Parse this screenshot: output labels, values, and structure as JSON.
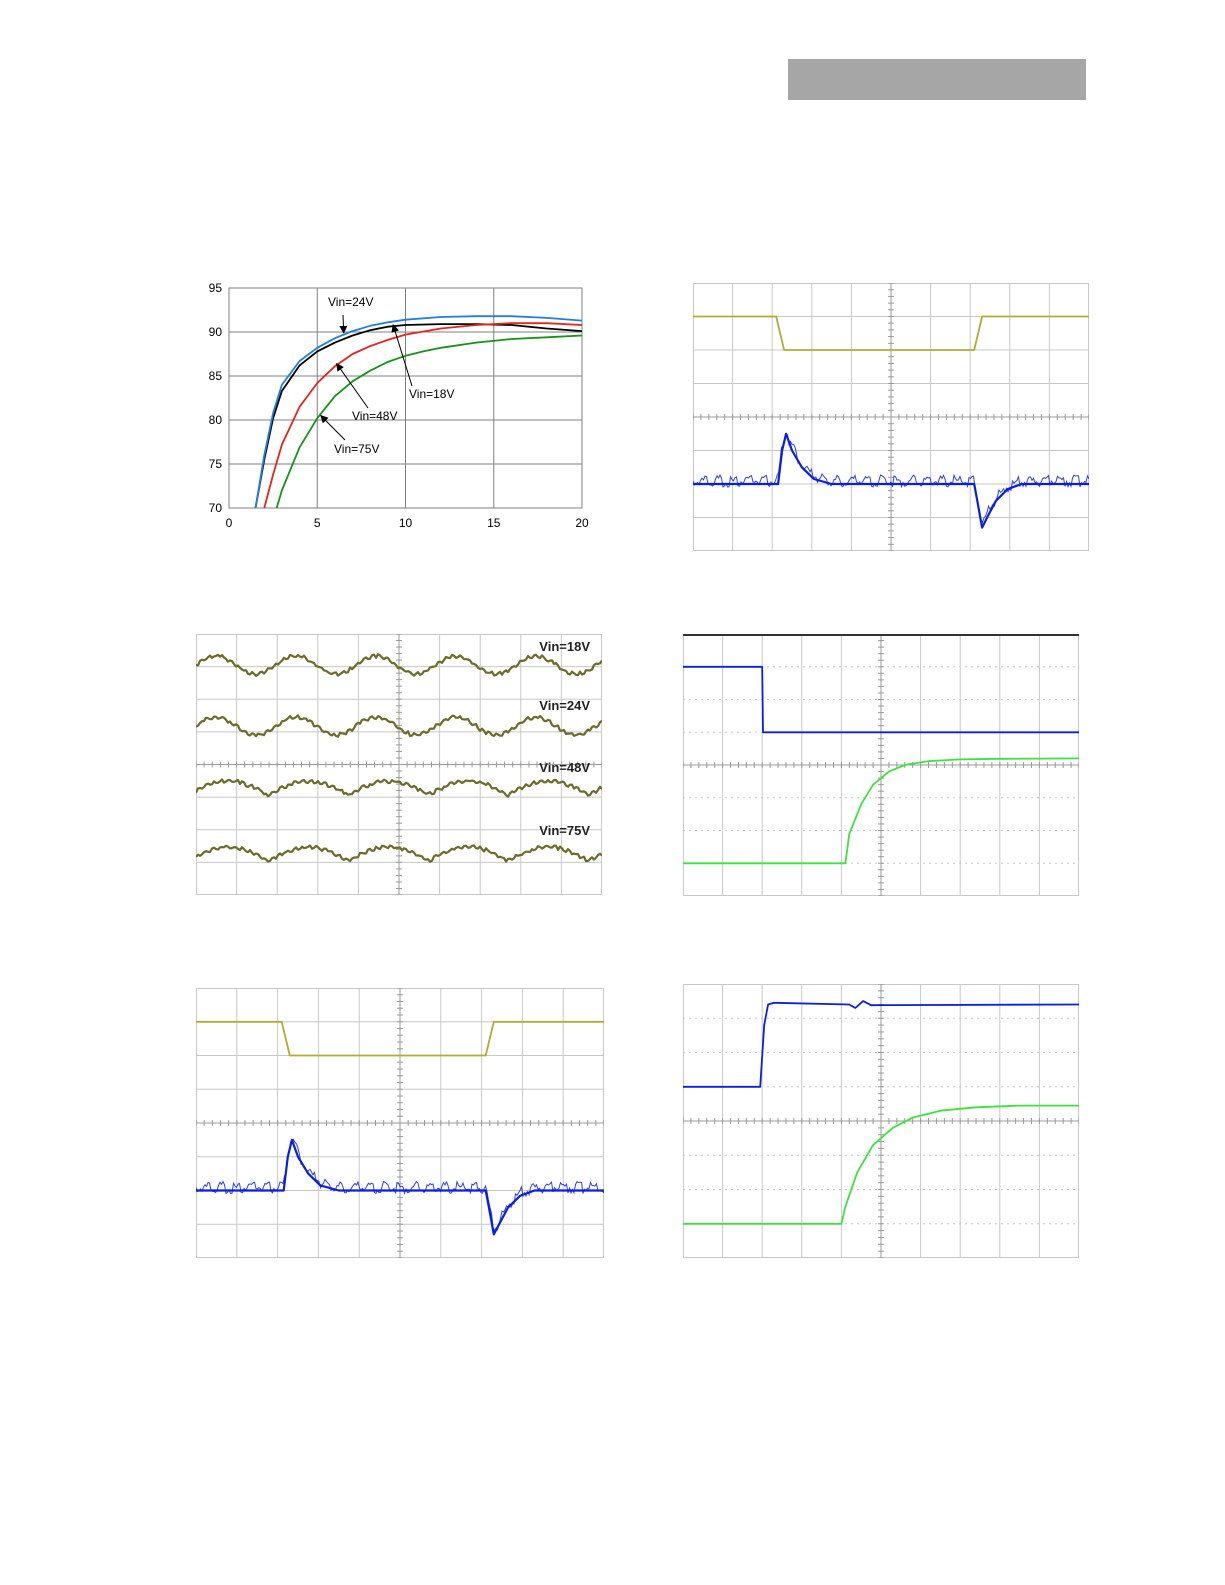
{
  "header": {
    "bar_color": "#a6a6a6"
  },
  "colors": {
    "vin18": "#000000",
    "vin24": "#1f7fe6",
    "vin48": "#e8231b",
    "vin75": "#179317",
    "scope_yellow": "#b0ac34",
    "scope_blue": "#0a1fe0",
    "scope_green": "#3de33d",
    "ripple_trace": "#6b6b2a",
    "grid": "#c8c8c8"
  },
  "chart_data": [
    {
      "id": "efficiency",
      "type": "line",
      "title": "",
      "xlabel": "",
      "ylabel": "",
      "xlim": [
        0,
        20
      ],
      "ylim": [
        70,
        95
      ],
      "x_ticks": [
        "0",
        "5",
        "10",
        "15",
        "20"
      ],
      "y_ticks": [
        "70",
        "75",
        "80",
        "85",
        "90",
        "95"
      ],
      "grid": true,
      "series": [
        {
          "name": "Vin=18V",
          "color": "#000000",
          "x": [
            1.5,
            2,
            2.5,
            3,
            4,
            5,
            6,
            7,
            8,
            9,
            10,
            12,
            14,
            16,
            18,
            20
          ],
          "y": [
            70,
            75.5,
            80.2,
            83.3,
            86.2,
            87.8,
            88.8,
            89.6,
            90.2,
            90.6,
            90.8,
            90.9,
            90.9,
            90.8,
            90.4,
            90.1
          ]
        },
        {
          "name": "Vin=24V",
          "color": "#1f7fe6",
          "x": [
            1.5,
            2,
            2.5,
            3,
            4,
            5,
            6,
            7,
            8,
            9,
            10,
            12,
            14,
            16,
            18,
            20
          ],
          "y": [
            70,
            76,
            80.8,
            84,
            86.7,
            88.2,
            89.3,
            90.1,
            90.7,
            91.1,
            91.4,
            91.7,
            91.8,
            91.8,
            91.6,
            91.3
          ]
        },
        {
          "name": "Vin=48V",
          "color": "#e8231b",
          "x": [
            2,
            2.5,
            3,
            4,
            5,
            6,
            7,
            8,
            9,
            10,
            12,
            14,
            16,
            18,
            20
          ],
          "y": [
            70,
            73.8,
            77.2,
            81.5,
            84.2,
            86.1,
            87.5,
            88.4,
            89.1,
            89.7,
            90.4,
            90.8,
            91,
            91,
            90.8
          ]
        },
        {
          "name": "Vin=75V",
          "color": "#179317",
          "x": [
            2.7,
            3,
            4,
            5,
            6,
            7,
            8,
            9,
            10,
            11,
            12,
            14,
            16,
            18,
            20
          ],
          "y": [
            70,
            72,
            76.9,
            80.2,
            82.7,
            84.4,
            85.6,
            86.6,
            87.3,
            87.8,
            88.2,
            88.8,
            89.2,
            89.4,
            89.6
          ]
        }
      ],
      "annotations": [
        {
          "text": "Vin=24V",
          "series": "Vin=24V"
        },
        {
          "text": "Vin=18V",
          "series": "Vin=18V"
        },
        {
          "text": "Vin=48V",
          "series": "Vin=48V"
        },
        {
          "text": "Vin=75V",
          "series": "Vin=75V"
        }
      ]
    },
    {
      "id": "transient-1",
      "type": "line",
      "grid": true,
      "divisions": [
        10,
        8
      ],
      "series": [
        {
          "name": "",
          "color": "#b0ac34",
          "x": [
            0,
            2.1,
            2.3,
            7.1,
            7.3,
            10
          ],
          "y": [
            7.0,
            7.0,
            6.0,
            6.0,
            7.0,
            7.0
          ]
        },
        {
          "name": "",
          "color": "#0a1fe0",
          "x": [
            0,
            2.15,
            2.25,
            2.35,
            2.5,
            2.75,
            3.05,
            3.5,
            7.1,
            7.18,
            7.3,
            7.45,
            7.65,
            7.95,
            8.3,
            10
          ],
          "y": [
            2.0,
            2.0,
            3.0,
            3.5,
            3.0,
            2.5,
            2.15,
            2.0,
            2.0,
            1.5,
            0.7,
            1.05,
            1.5,
            1.85,
            2.0,
            2.0
          ]
        }
      ]
    },
    {
      "id": "ripple",
      "type": "line",
      "grid": true,
      "divisions": [
        10,
        8
      ],
      "labels": [
        "Vin=18V",
        "Vin=24V",
        "Vin=48V",
        "Vin=75V"
      ]
    },
    {
      "id": "turn-off",
      "type": "line",
      "grid": true,
      "divisions": [
        10,
        8
      ],
      "series": [
        {
          "name": "",
          "color": "#0a1fe0",
          "x": [
            0,
            2.0,
            2.02,
            10
          ],
          "y": [
            7.0,
            7.0,
            5.0,
            5.0
          ]
        },
        {
          "name": "",
          "color": "#3de33d",
          "x": [
            0,
            4.1,
            4.2,
            4.5,
            4.8,
            5.2,
            5.6,
            6.2,
            7.0,
            8.0,
            10
          ],
          "y": [
            1.0,
            1.0,
            1.9,
            2.8,
            3.4,
            3.8,
            4.0,
            4.12,
            4.17,
            4.19,
            4.2
          ]
        }
      ]
    },
    {
      "id": "transient-2",
      "type": "line",
      "grid": true,
      "divisions": [
        10,
        8
      ],
      "series": [
        {
          "name": "",
          "color": "#b0ac34",
          "x": [
            0,
            2.1,
            2.3,
            7.1,
            7.3,
            10
          ],
          "y": [
            7.0,
            7.0,
            6.0,
            6.0,
            7.0,
            7.0
          ]
        },
        {
          "name": "",
          "color": "#0a1fe0",
          "x": [
            0,
            2.15,
            2.25,
            2.35,
            2.5,
            2.75,
            3.05,
            3.5,
            7.1,
            7.18,
            7.3,
            7.45,
            7.65,
            7.95,
            8.3,
            10
          ],
          "y": [
            2.0,
            2.0,
            3.0,
            3.5,
            3.0,
            2.5,
            2.15,
            2.0,
            2.0,
            1.5,
            0.7,
            1.05,
            1.5,
            1.85,
            2.0,
            2.0
          ]
        }
      ]
    },
    {
      "id": "turn-on",
      "type": "line",
      "grid": true,
      "divisions": [
        10,
        8
      ],
      "series": [
        {
          "name": "",
          "color": "#0a1fe0",
          "x": [
            0,
            1.95,
            2.05,
            2.15,
            2.3,
            4.2,
            4.35,
            4.55,
            4.75,
            10
          ],
          "y": [
            5.0,
            5.0,
            6.8,
            7.4,
            7.45,
            7.4,
            7.3,
            7.5,
            7.38,
            7.4
          ]
        },
        {
          "name": "",
          "color": "#3de33d",
          "x": [
            0,
            4.0,
            4.1,
            4.4,
            4.8,
            5.3,
            5.8,
            6.5,
            7.4,
            8.5,
            10
          ],
          "y": [
            1.0,
            1.0,
            1.5,
            2.5,
            3.3,
            3.8,
            4.1,
            4.3,
            4.4,
            4.45,
            4.45
          ]
        }
      ]
    }
  ]
}
